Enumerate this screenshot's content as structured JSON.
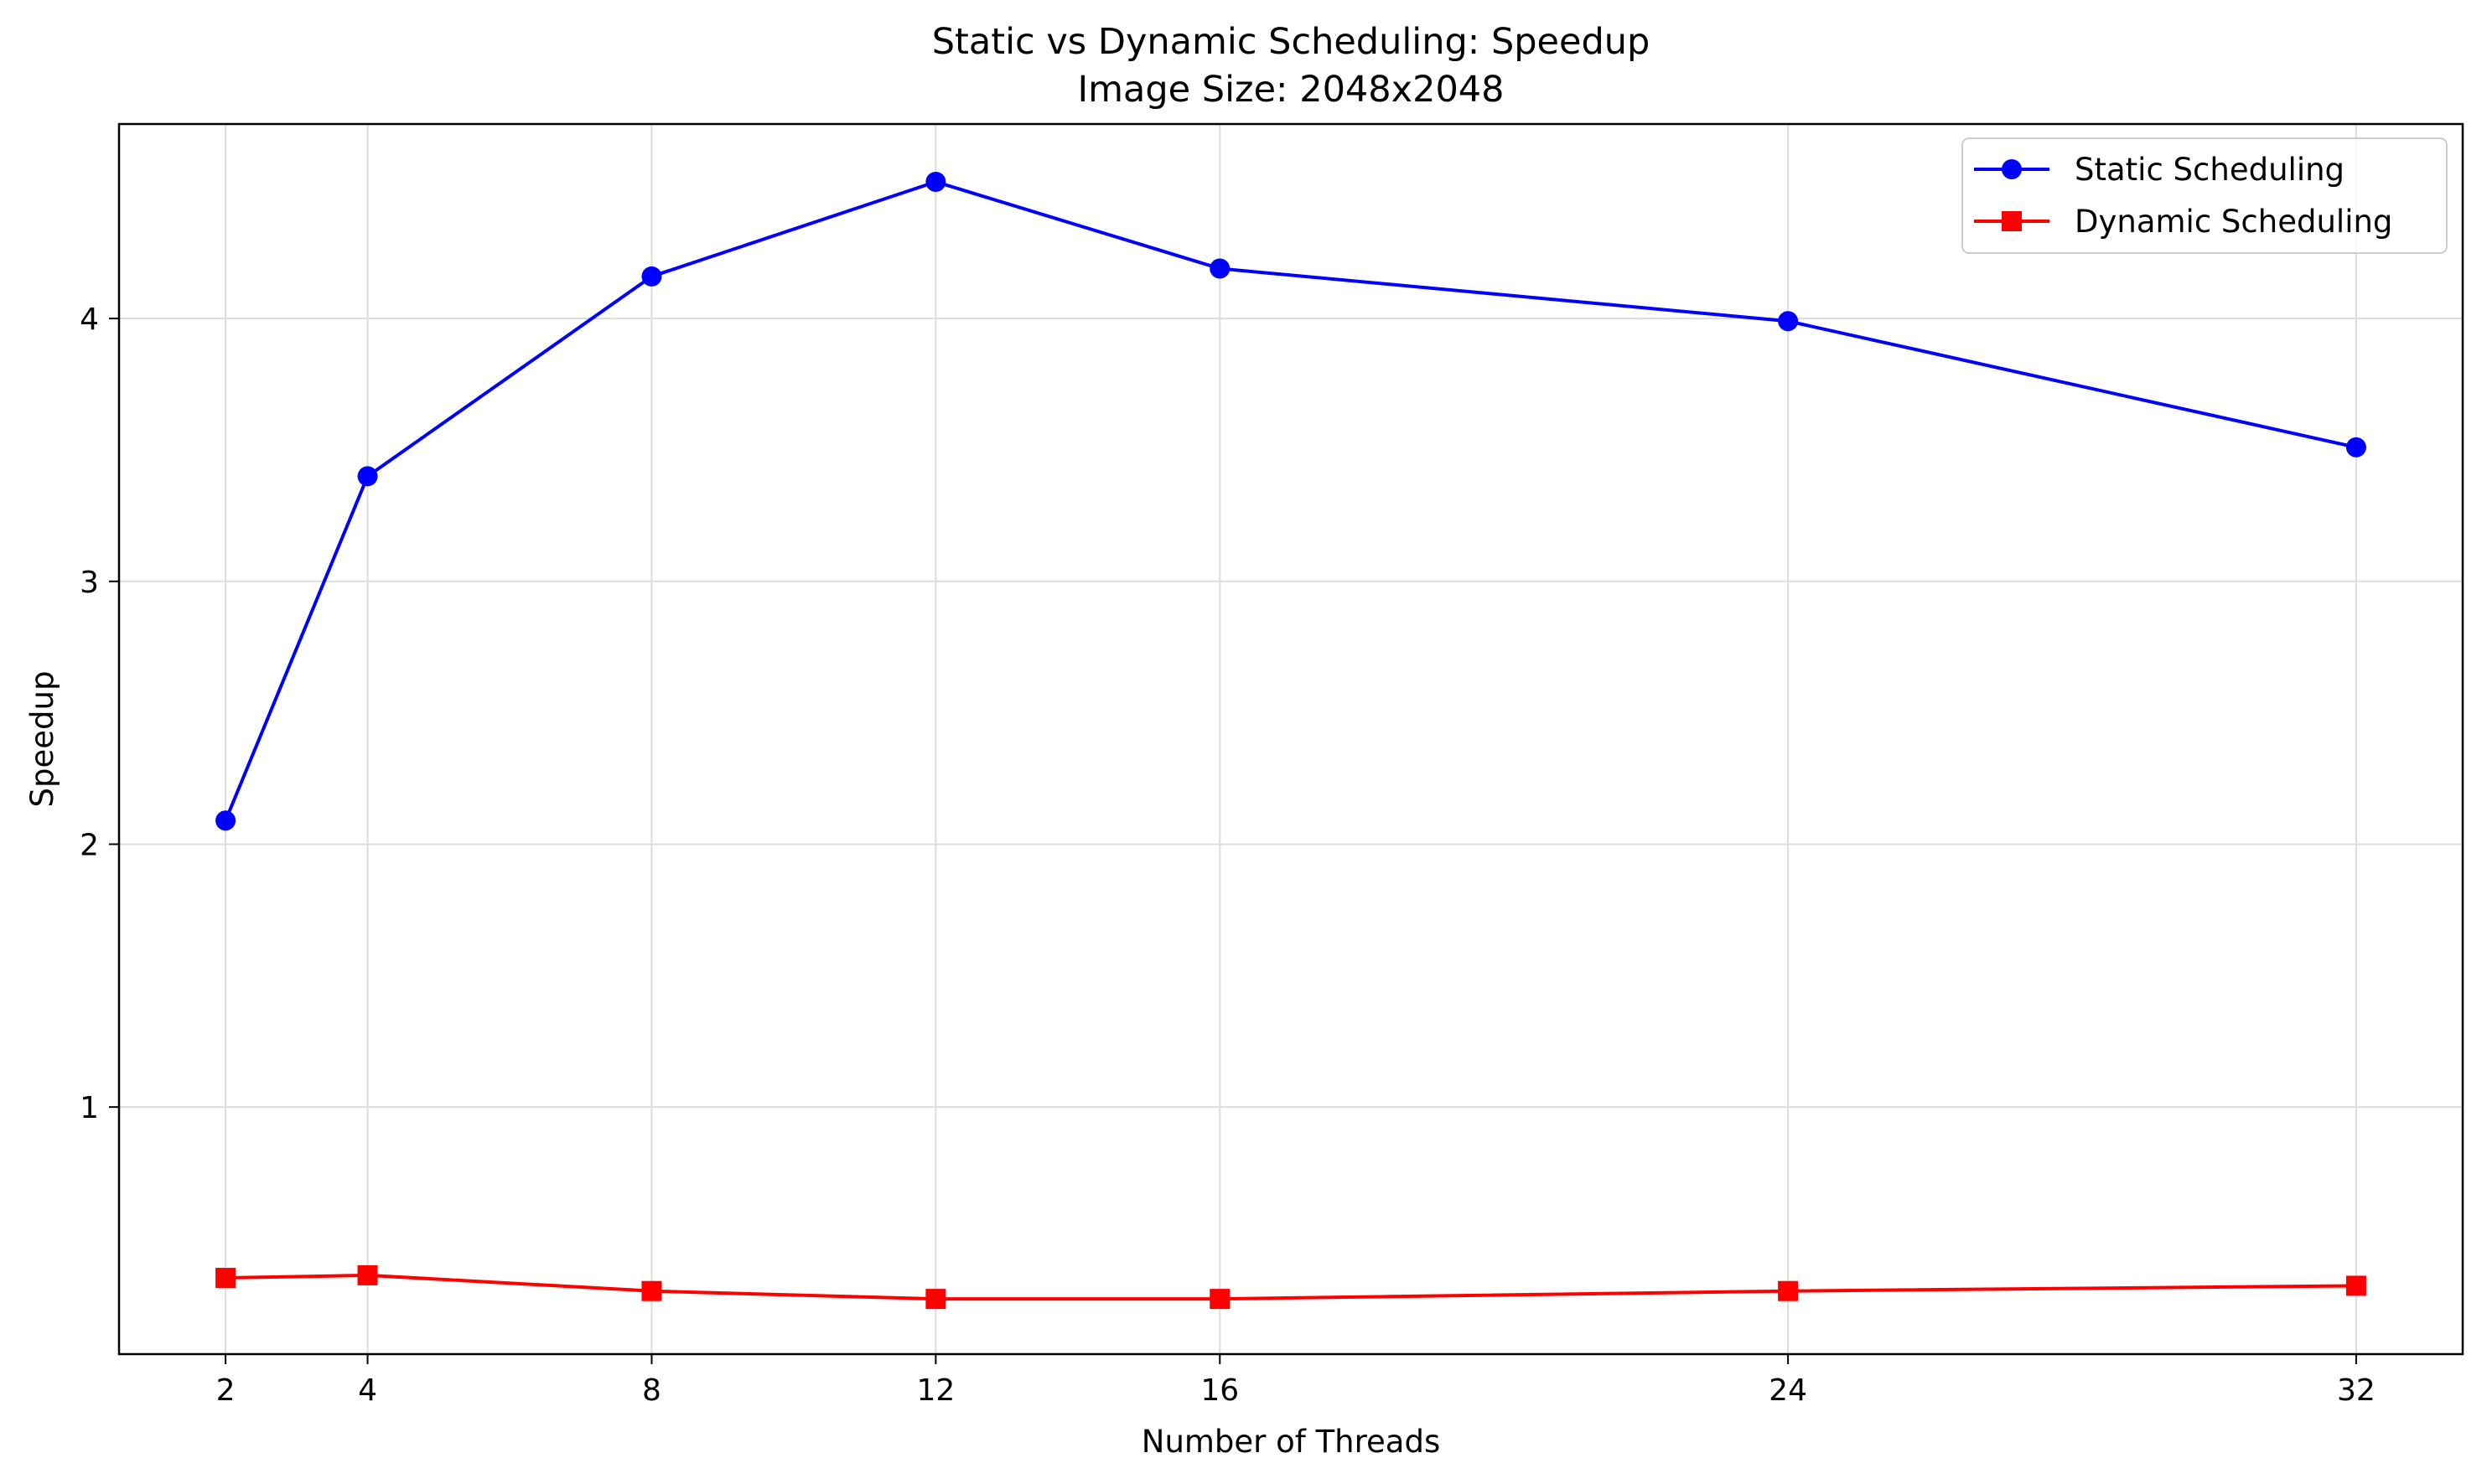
{
  "chart_data": {
    "type": "line",
    "title": "Static vs Dynamic Scheduling: Speedup",
    "subtitle": "Image Size: 2048x2048",
    "xlabel": "Number of Threads",
    "ylabel": "Speedup",
    "x": [
      2,
      4,
      8,
      12,
      16,
      24,
      32
    ],
    "x_ticks": [
      "2",
      "4",
      "8",
      "12",
      "16",
      "24",
      "32"
    ],
    "y_ticks": [
      "1",
      "2",
      "3",
      "4"
    ],
    "xlim": [
      0.5,
      33.5
    ],
    "ylim": [
      0.06,
      4.74
    ],
    "grid": true,
    "legend_position": "top-right",
    "series": [
      {
        "name": "Static Scheduling",
        "color": "#0000ff",
        "marker": "circle",
        "values": [
          2.09,
          3.4,
          4.16,
          4.52,
          4.19,
          3.99,
          3.51
        ]
      },
      {
        "name": "Dynamic Scheduling",
        "color": "#ff0000",
        "marker": "square",
        "values": [
          0.35,
          0.36,
          0.3,
          0.27,
          0.27,
          0.3,
          0.32
        ]
      }
    ]
  }
}
